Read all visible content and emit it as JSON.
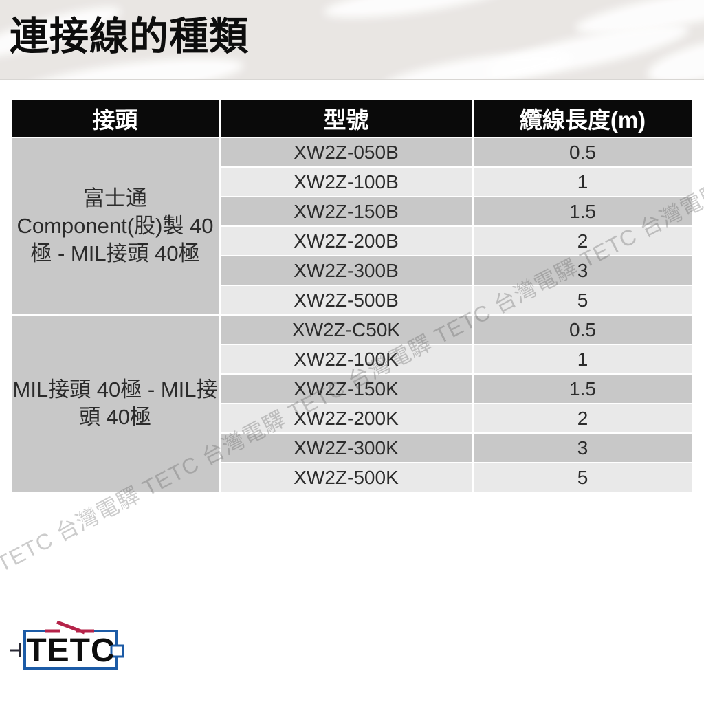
{
  "page": {
    "title": "連接線的種類"
  },
  "table": {
    "headers": [
      "接頭",
      "型號",
      "纜線長度(m)"
    ],
    "groups": [
      {
        "connector": "富士通\nComponent(股)製 40\n極 - MIL接頭 40極",
        "rows": [
          {
            "model": "XW2Z-050B",
            "length": "0.5"
          },
          {
            "model": "XW2Z-100B",
            "length": "1"
          },
          {
            "model": "XW2Z-150B",
            "length": "1.5"
          },
          {
            "model": "XW2Z-200B",
            "length": "2"
          },
          {
            "model": "XW2Z-300B",
            "length": "3"
          },
          {
            "model": "XW2Z-500B",
            "length": "5"
          }
        ]
      },
      {
        "connector": "MIL接頭 40極 - MIL接\n頭 40極",
        "rows": [
          {
            "model": "XW2Z-C50K",
            "length": "0.5"
          },
          {
            "model": "XW2Z-100K",
            "length": "1"
          },
          {
            "model": "XW2Z-150K",
            "length": "1.5"
          },
          {
            "model": "XW2Z-200K",
            "length": "2"
          },
          {
            "model": "XW2Z-300K",
            "length": "3"
          },
          {
            "model": "XW2Z-500K",
            "length": "5"
          }
        ]
      }
    ]
  },
  "watermark": {
    "text": "電驛 TETC 台灣電驛 TETC 台灣電驛 TETC 台灣電驛 TETC 台灣電驛 TETC 台灣電驛"
  },
  "logo": {
    "text": "TETC"
  },
  "colors": {
    "banner_bg": "#e9e6e3",
    "header_bg": "#0a0a0a",
    "row_dark": "#c8c8c8",
    "row_light": "#e9e9e9",
    "logo_blue": "#1c5ba6",
    "logo_red": "#b52349"
  }
}
